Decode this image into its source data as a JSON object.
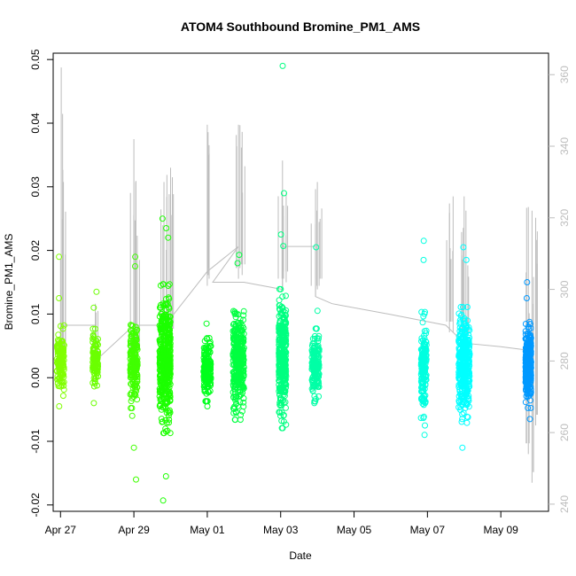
{
  "chart_data": {
    "type": "scatter",
    "title": "ATOM4 Southbound Bromine_PM1_AMS",
    "xlabel": "Date",
    "ylabel": "Bromine_PM1_AMS",
    "xlim": [
      -0.2,
      13.3
    ],
    "ylim": [
      -0.021,
      0.051
    ],
    "y2lim": [
      238,
      366
    ],
    "x_ticks": [
      {
        "value": 0,
        "label": "Apr 27"
      },
      {
        "value": 2,
        "label": "Apr 29"
      },
      {
        "value": 4,
        "label": "May 01"
      },
      {
        "value": 6,
        "label": "May 03"
      },
      {
        "value": 8,
        "label": "May 05"
      },
      {
        "value": 10,
        "label": "May 07"
      },
      {
        "value": 12,
        "label": "May 09"
      }
    ],
    "y_ticks": [
      {
        "value": -0.02,
        "label": "-0.02"
      },
      {
        "value": -0.01,
        "label": "-0.01"
      },
      {
        "value": 0.0,
        "label": "0.00"
      },
      {
        "value": 0.01,
        "label": "0.01"
      },
      {
        "value": 0.02,
        "label": "0.02"
      },
      {
        "value": 0.03,
        "label": "0.03"
      },
      {
        "value": 0.04,
        "label": "0.04"
      },
      {
        "value": 0.05,
        "label": "0.05"
      }
    ],
    "y2_ticks": [
      {
        "value": 240,
        "label": "240"
      },
      {
        "value": 260,
        "label": "260"
      },
      {
        "value": 280,
        "label": "280"
      },
      {
        "value": 300,
        "label": "300"
      },
      {
        "value": 320,
        "label": "320"
      },
      {
        "value": 340,
        "label": "340"
      },
      {
        "value": 360,
        "label": "360"
      }
    ],
    "point_clusters": [
      {
        "x": 0.0,
        "width": 0.2,
        "color": "#80ff00",
        "mean": 0.0025,
        "sd": 0.0022,
        "n": 140,
        "outliers": [
          0.019,
          0.0125,
          -0.0045
        ]
      },
      {
        "x": 0.95,
        "width": 0.15,
        "color": "#6bff00",
        "mean": 0.003,
        "sd": 0.0018,
        "n": 110,
        "outliers": [
          0.0135,
          0.011,
          -0.004
        ]
      },
      {
        "x": 2.0,
        "width": 0.2,
        "color": "#40ff00",
        "mean": 0.0025,
        "sd": 0.0028,
        "n": 180,
        "outliers": [
          0.019,
          0.0175,
          -0.006,
          -0.011,
          -0.016
        ]
      },
      {
        "x": 2.85,
        "width": 0.3,
        "color": "#1cff00",
        "mean": 0.003,
        "sd": 0.0045,
        "n": 450,
        "outliers": [
          0.025,
          0.0235,
          0.022,
          -0.008,
          -0.0155,
          -0.0193
        ]
      },
      {
        "x": 4.0,
        "width": 0.2,
        "color": "#00ff1c",
        "mean": 0.0015,
        "sd": 0.002,
        "n": 170,
        "outliers": [
          0.0085,
          -0.0045
        ]
      },
      {
        "x": 4.85,
        "width": 0.3,
        "color": "#00ff40",
        "mean": 0.0025,
        "sd": 0.0035,
        "n": 330,
        "outliers": [
          0.0193,
          0.018,
          -0.0055
        ]
      },
      {
        "x": 6.05,
        "width": 0.2,
        "color": "#00ff80",
        "mean": 0.003,
        "sd": 0.0042,
        "n": 340,
        "outliers": [
          0.049,
          0.029,
          0.0225,
          0.0207,
          -0.004
        ]
      },
      {
        "x": 6.95,
        "width": 0.2,
        "color": "#00ffa6",
        "mean": 0.002,
        "sd": 0.0022,
        "n": 160,
        "outliers": [
          0.0205,
          0.0105,
          -0.004
        ]
      },
      {
        "x": 11.0,
        "width": 0.3,
        "color": "#00ffff",
        "mean": 0.002,
        "sd": 0.0035,
        "n": 360,
        "outliers": [
          0.0205,
          0.0185,
          -0.011,
          -0.0065
        ]
      },
      {
        "x": 9.9,
        "width": 0.15,
        "color": "#00ffe0",
        "mean": 0.002,
        "sd": 0.0032,
        "n": 180,
        "outliers": [
          0.0215,
          0.0185,
          -0.009,
          -0.0075
        ]
      },
      {
        "x": 12.75,
        "width": 0.15,
        "color": "#0099ff",
        "mean": 0.002,
        "sd": 0.0026,
        "n": 320,
        "outliers": [
          0.015,
          0.0125,
          -0.0065
        ]
      }
    ],
    "secondary_series": {
      "name": "heading",
      "axis": "right",
      "color": "#bdbdbd",
      "path": [
        [
          0.0,
          281
        ],
        [
          0.0,
          290
        ],
        [
          0.95,
          290
        ],
        [
          0.95,
          280
        ],
        [
          2.0,
          290
        ],
        [
          2.85,
          290
        ],
        [
          4.0,
          305
        ],
        [
          4.85,
          312
        ],
        [
          4.15,
          302
        ],
        [
          5.0,
          302
        ],
        [
          6.05,
          300
        ],
        [
          6.05,
          312
        ],
        [
          6.95,
          312
        ],
        [
          6.95,
          298
        ],
        [
          7.4,
          296
        ],
        [
          9.0,
          293
        ],
        [
          10.5,
          290
        ],
        [
          11.0,
          285
        ],
        [
          12.0,
          284
        ],
        [
          12.75,
          283
        ]
      ],
      "spikes": [
        {
          "x": 0.02,
          "top": 362,
          "bottom": 277
        },
        {
          "x": 0.08,
          "top": 330,
          "bottom": 281
        },
        {
          "x": 0.95,
          "top": 296,
          "bottom": 275
        },
        {
          "x": 2.0,
          "top": 342,
          "bottom": 278
        },
        {
          "x": 2.05,
          "top": 330,
          "bottom": 280
        },
        {
          "x": 2.82,
          "top": 330,
          "bottom": 282
        },
        {
          "x": 2.9,
          "top": 332,
          "bottom": 284
        },
        {
          "x": 3.0,
          "top": 334,
          "bottom": 286
        },
        {
          "x": 4.0,
          "top": 346,
          "bottom": 301
        },
        {
          "x": 4.05,
          "top": 338,
          "bottom": 303
        },
        {
          "x": 4.85,
          "top": 346,
          "bottom": 303
        },
        {
          "x": 4.95,
          "top": 344,
          "bottom": 304
        },
        {
          "x": 6.05,
          "top": 336,
          "bottom": 300
        },
        {
          "x": 6.15,
          "top": 327,
          "bottom": 302
        },
        {
          "x": 6.95,
          "top": 328,
          "bottom": 298
        },
        {
          "x": 7.0,
          "top": 330,
          "bottom": 300
        },
        {
          "x": 10.6,
          "top": 324,
          "bottom": 288
        },
        {
          "x": 10.7,
          "top": 326,
          "bottom": 288
        },
        {
          "x": 11.0,
          "top": 326,
          "bottom": 285
        },
        {
          "x": 11.05,
          "top": 322,
          "bottom": 285
        },
        {
          "x": 12.75,
          "top": 323,
          "bottom": 254
        },
        {
          "x": 12.85,
          "top": 322,
          "bottom": 246
        },
        {
          "x": 12.95,
          "top": 320,
          "bottom": 262
        }
      ]
    }
  }
}
